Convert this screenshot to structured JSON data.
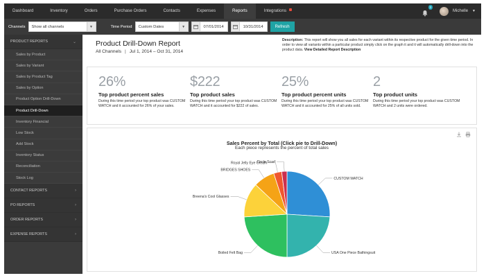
{
  "nav": {
    "items": [
      "Dashboard",
      "Inventory",
      "Orders",
      "Purchase Orders",
      "Contacts",
      "Expenses",
      "Reports",
      "Integrations"
    ],
    "active": "Reports",
    "notification_count": "3",
    "user_name": "Michelle"
  },
  "filters": {
    "channels_label": "Channels",
    "channels_value": "Show all channels",
    "time_period_label": "Time Period",
    "time_period_value": "Custom Dates",
    "start_date": "07/01/2014",
    "end_date": "10/31/2014",
    "refresh_label": "Refresh"
  },
  "sidebar": {
    "product_reports_label": "PRODUCT REPORTS",
    "product_items": [
      "Sales by Product",
      "Sales by Variant",
      "Sales by Product Tag",
      "Sales by Option",
      "Product Option Drill-Down",
      "Product Drill-Down",
      "Inventory Financial",
      "Low Stock",
      "Add Stock",
      "Inventory Status",
      "Reconciliation",
      "Stock Log"
    ],
    "active_item": "Product Drill-Down",
    "sections": [
      "CONTACT REPORTS",
      "PO REPORTS",
      "ORDER REPORTS",
      "EXPENSE REPORTS"
    ]
  },
  "report": {
    "title": "Product Drill-Down Report",
    "channel": "All Channels",
    "date_range": "Jul 1, 2014 – Oct 31, 2014",
    "description_label": "Description:",
    "description_text": "This report will show you all sales for each variant within its respective product for the given time period. In order to view all variants within a particular product simply click on the graph it and it will automatically drill-down into the product data.",
    "description_link": "View Detailed Report Description"
  },
  "stats": [
    {
      "value": "26%",
      "label": "Top product percent sales",
      "text": "During this time period your top product was CUSTOM WATCH and it accounted for 26% of your sales."
    },
    {
      "value": "$222",
      "label": "Top product sales",
      "text": "During this time period your top product was CUSTOM WATCH and it accounted for $222 of sales."
    },
    {
      "value": "25%",
      "label": "Top product percent units",
      "text": "During this time period your top product was CUSTOM WATCH and it accounted for 25% of all units sold."
    },
    {
      "value": "2",
      "label": "Top product units",
      "text": "During this time period your top product was CUSTOM WATCH and 2 units were ordered."
    }
  ],
  "chart_data": {
    "type": "pie",
    "title": "Sales Percent by Total (Click pie to Drill-Down)",
    "subtitle": "Each piece represents the percent of total sales",
    "slices": [
      {
        "label": "CUSTOM WATCH",
        "value": 26,
        "color": "#2f8fd6"
      },
      {
        "label": "USA One Piece Bathingsuit",
        "value": 24,
        "color": "#33b3ad"
      },
      {
        "label": "Boiled Felt Bag",
        "value": 24,
        "color": "#2ec05f"
      },
      {
        "label": "Breena's Cool Glasses",
        "value": 13,
        "color": "#fcd23a"
      },
      {
        "label": "BRIDGES SHOES",
        "value": 8,
        "color": "#f5a316"
      },
      {
        "label": "Royal Jelly Eye Cream",
        "value": 3,
        "color": "#f0572f"
      },
      {
        "label": "Circle Scarf",
        "value": 2,
        "color": "#cc2f4f"
      }
    ]
  }
}
